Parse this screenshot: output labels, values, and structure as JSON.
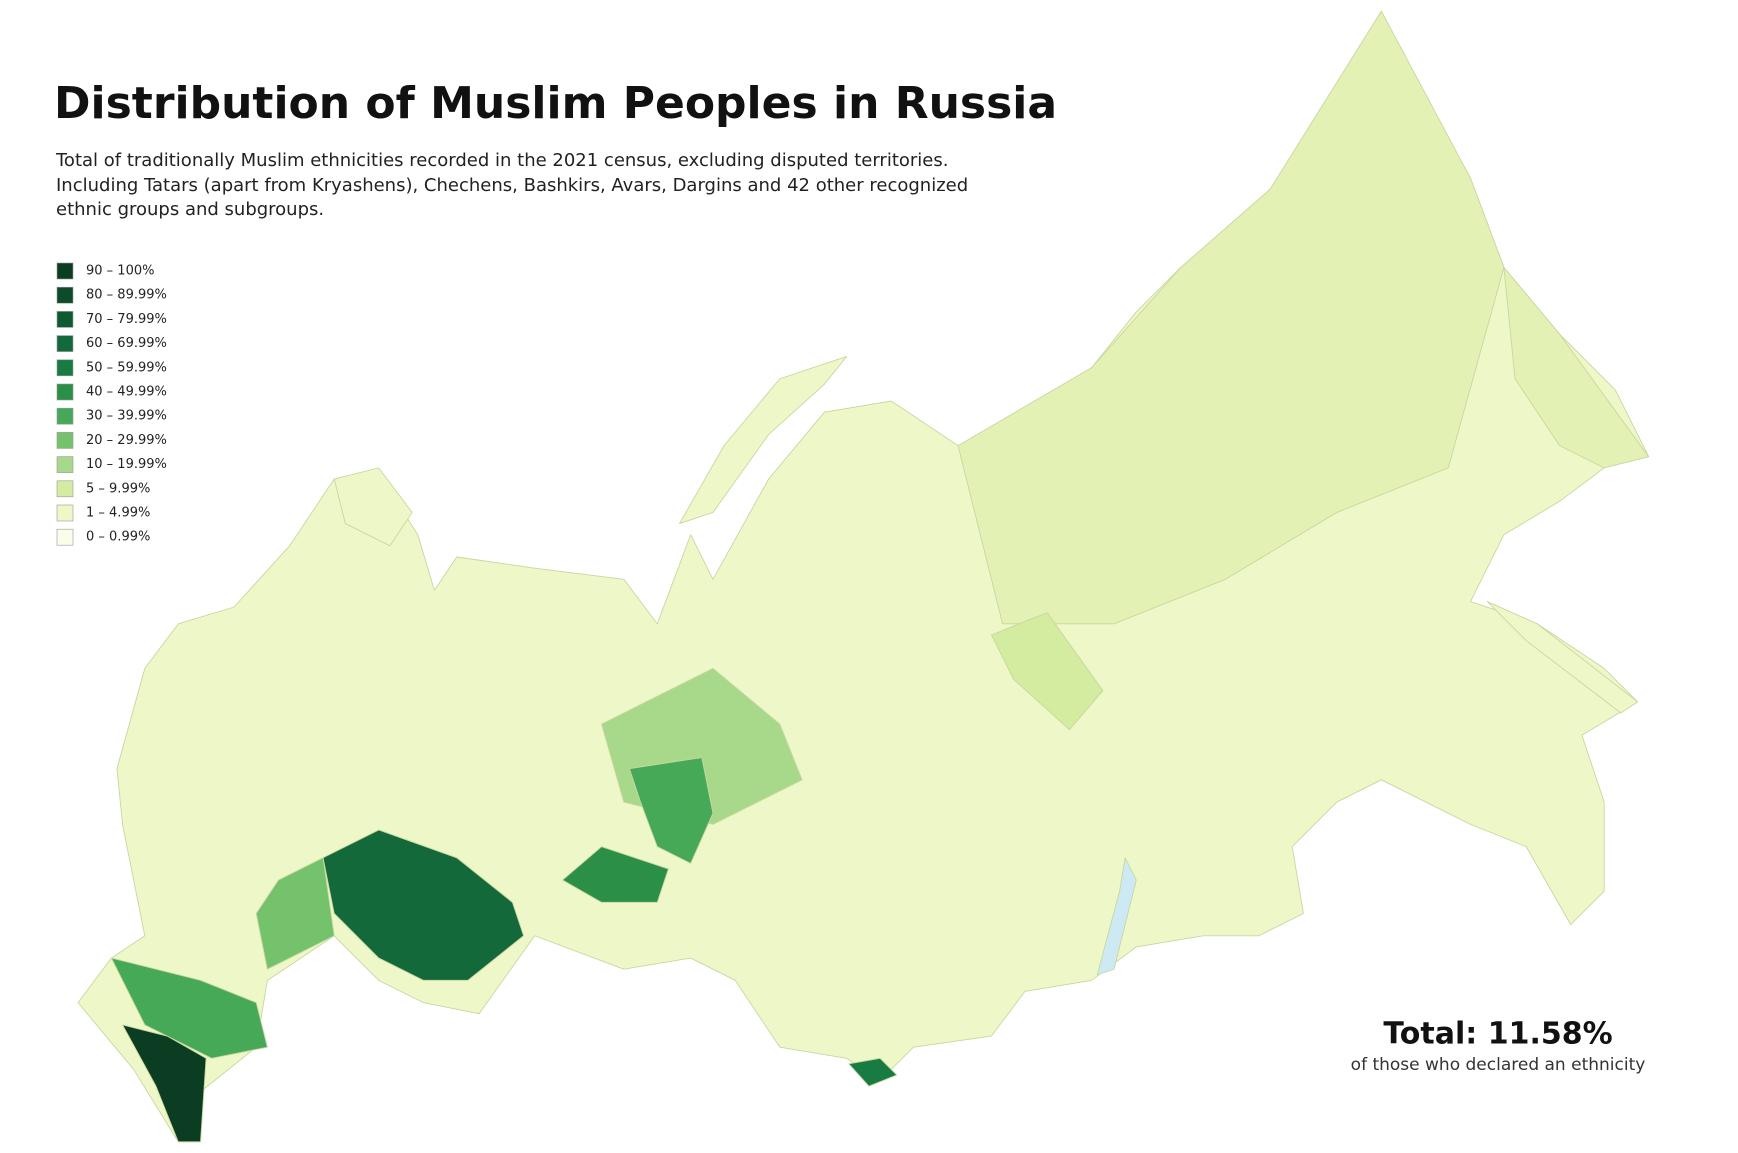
{
  "header": {
    "title": "Distribution of Muslim Peoples in Russia",
    "subtitle_lines": [
      "Total of traditionally Muslim ethnicities recorded in the 2021 census, excluding disputed territories.",
      "Including Tatars (apart from Kryashens), Chechens, Bashkirs, Avars, Dargins and 42 other recognized",
      "ethnic groups and subgroups."
    ]
  },
  "legend": [
    {
      "label": "90 – 100%",
      "color": "#0b3d23"
    },
    {
      "label": "80 – 89.99%",
      "color": "#0e4b2b"
    },
    {
      "label": "70 – 79.99%",
      "color": "#105a32"
    },
    {
      "label": "60 – 69.99%",
      "color": "#13693a"
    },
    {
      "label": "50 – 59.99%",
      "color": "#187b41"
    },
    {
      "label": "40 – 49.99%",
      "color": "#2b8f48"
    },
    {
      "label": "30 – 39.99%",
      "color": "#45a957"
    },
    {
      "label": "20 – 29.99%",
      "color": "#74c26b"
    },
    {
      "label": "10 – 19.99%",
      "color": "#a8d98a"
    },
    {
      "label": "5 – 9.99%",
      "color": "#d4ec9f"
    },
    {
      "label": "1 – 4.99%",
      "color": "#eef7c8"
    },
    {
      "label": "0 – 0.99%",
      "color": "#fbfde9"
    }
  ],
  "total": {
    "label": "Total: 11.58%",
    "note": "of those who declared an ethnicity"
  }
}
